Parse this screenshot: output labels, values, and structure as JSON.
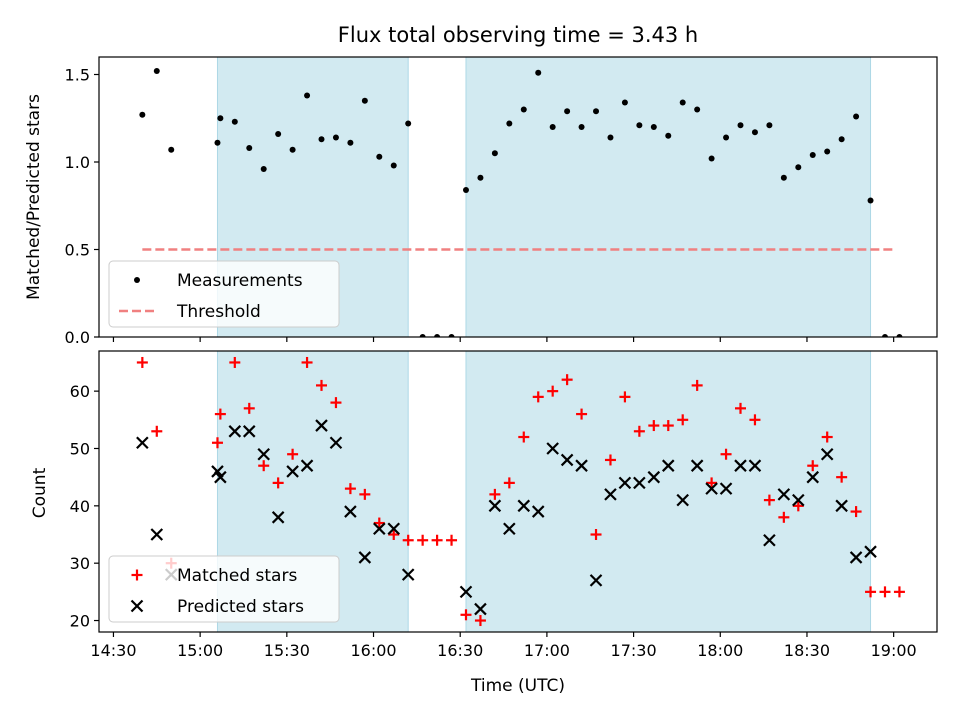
{
  "title": "Flux total observing time = 3.43 h",
  "chart_data": [
    {
      "type": "scatter",
      "panel": "top",
      "ylabel": "Matched/Predicted stars",
      "ylim": [
        0,
        1.6
      ],
      "yticks": [
        0.0,
        0.5,
        1.0,
        1.5
      ],
      "ytick_labels": [
        "0.0",
        "0.5",
        "1.0",
        "1.5"
      ],
      "series": [
        {
          "name": "Measurements",
          "color": "#000000",
          "marker": "dot",
          "points": [
            [
              "14:40",
              1.27
            ],
            [
              "14:45",
              1.52
            ],
            [
              "14:50",
              1.07
            ],
            [
              "15:06",
              1.11
            ],
            [
              "15:07",
              1.25
            ],
            [
              "15:12",
              1.23
            ],
            [
              "15:17",
              1.08
            ],
            [
              "15:22",
              0.96
            ],
            [
              "15:27",
              1.16
            ],
            [
              "15:32",
              1.07
            ],
            [
              "15:37",
              1.38
            ],
            [
              "15:42",
              1.13
            ],
            [
              "15:47",
              1.14
            ],
            [
              "15:52",
              1.11
            ],
            [
              "15:57",
              1.35
            ],
            [
              "16:02",
              1.03
            ],
            [
              "16:07",
              0.98
            ],
            [
              "16:12",
              1.22
            ],
            [
              "16:17",
              0.0
            ],
            [
              "16:22",
              0.0
            ],
            [
              "16:27",
              0.0
            ],
            [
              "16:32",
              0.84
            ],
            [
              "16:37",
              0.91
            ],
            [
              "16:42",
              1.05
            ],
            [
              "16:47",
              1.22
            ],
            [
              "16:52",
              1.3
            ],
            [
              "16:57",
              1.51
            ],
            [
              "17:02",
              1.2
            ],
            [
              "17:07",
              1.29
            ],
            [
              "17:12",
              1.2
            ],
            [
              "17:17",
              1.29
            ],
            [
              "17:22",
              1.14
            ],
            [
              "17:27",
              1.34
            ],
            [
              "17:32",
              1.21
            ],
            [
              "17:37",
              1.2
            ],
            [
              "17:42",
              1.15
            ],
            [
              "17:47",
              1.34
            ],
            [
              "17:52",
              1.3
            ],
            [
              "17:57",
              1.02
            ],
            [
              "18:02",
              1.14
            ],
            [
              "18:07",
              1.21
            ],
            [
              "18:12",
              1.17
            ],
            [
              "18:17",
              1.21
            ],
            [
              "18:22",
              0.91
            ],
            [
              "18:27",
              0.97
            ],
            [
              "18:32",
              1.04
            ],
            [
              "18:37",
              1.06
            ],
            [
              "18:42",
              1.13
            ],
            [
              "18:47",
              1.26
            ],
            [
              "18:52",
              0.78
            ],
            [
              "18:57",
              0.0
            ],
            [
              "19:02",
              0.0
            ]
          ]
        },
        {
          "name": "Threshold",
          "color": "#f08080",
          "style": "dashed",
          "points": [
            [
              "14:40",
              0.5
            ],
            [
              "19:00",
              0.5
            ]
          ]
        }
      ],
      "shaded_intervals": [
        [
          "15:06",
          "16:12"
        ],
        [
          "16:32",
          "18:52"
        ]
      ],
      "shade_color": "#add8e6",
      "legend": {
        "placement": "lower-left",
        "labels": [
          "Measurements",
          "Threshold"
        ]
      }
    },
    {
      "type": "scatter",
      "panel": "bottom",
      "xlabel": "Time (UTC)",
      "ylabel": "Count",
      "ylim": [
        18,
        67
      ],
      "yticks": [
        20,
        30,
        40,
        50,
        60
      ],
      "ytick_labels": [
        "20",
        "30",
        "40",
        "50",
        "60"
      ],
      "xlim": [
        "14:25",
        "19:15"
      ],
      "xticks": [
        "14:30",
        "15:00",
        "15:30",
        "16:00",
        "16:30",
        "17:00",
        "17:30",
        "18:00",
        "18:30",
        "19:00"
      ],
      "series": [
        {
          "name": "Matched stars",
          "color": "#ff0000",
          "marker": "plus",
          "points": [
            [
              "14:40",
              65
            ],
            [
              "14:45",
              53
            ],
            [
              "14:50",
              30
            ],
            [
              "15:06",
              51
            ],
            [
              "15:07",
              56
            ],
            [
              "15:12",
              65
            ],
            [
              "15:17",
              57
            ],
            [
              "15:22",
              47
            ],
            [
              "15:27",
              44
            ],
            [
              "15:32",
              49
            ],
            [
              "15:37",
              65
            ],
            [
              "15:42",
              61
            ],
            [
              "15:47",
              58
            ],
            [
              "15:52",
              43
            ],
            [
              "15:57",
              42
            ],
            [
              "16:02",
              37
            ],
            [
              "16:07",
              35
            ],
            [
              "16:12",
              34
            ],
            [
              "16:17",
              34
            ],
            [
              "16:22",
              34
            ],
            [
              "16:27",
              34
            ],
            [
              "16:32",
              21
            ],
            [
              "16:37",
              20
            ],
            [
              "16:42",
              42
            ],
            [
              "16:47",
              44
            ],
            [
              "16:52",
              52
            ],
            [
              "16:57",
              59
            ],
            [
              "17:02",
              60
            ],
            [
              "17:07",
              62
            ],
            [
              "17:12",
              56
            ],
            [
              "17:17",
              35
            ],
            [
              "17:22",
              48
            ],
            [
              "17:27",
              59
            ],
            [
              "17:32",
              53
            ],
            [
              "17:37",
              54
            ],
            [
              "17:42",
              54
            ],
            [
              "17:47",
              55
            ],
            [
              "17:52",
              61
            ],
            [
              "17:57",
              44
            ],
            [
              "18:02",
              49
            ],
            [
              "18:07",
              57
            ],
            [
              "18:12",
              55
            ],
            [
              "18:17",
              41
            ],
            [
              "18:22",
              38
            ],
            [
              "18:27",
              40
            ],
            [
              "18:32",
              47
            ],
            [
              "18:37",
              52
            ],
            [
              "18:42",
              45
            ],
            [
              "18:47",
              39
            ],
            [
              "18:52",
              25
            ],
            [
              "18:57",
              25
            ],
            [
              "19:02",
              25
            ]
          ]
        },
        {
          "name": "Predicted stars",
          "color": "#000000",
          "marker": "x",
          "points": [
            [
              "14:40",
              51
            ],
            [
              "14:45",
              35
            ],
            [
              "14:50",
              28
            ],
            [
              "15:06",
              46
            ],
            [
              "15:07",
              45
            ],
            [
              "15:12",
              53
            ],
            [
              "15:17",
              53
            ],
            [
              "15:22",
              49
            ],
            [
              "15:27",
              38
            ],
            [
              "15:32",
              46
            ],
            [
              "15:37",
              47
            ],
            [
              "15:42",
              54
            ],
            [
              "15:47",
              51
            ],
            [
              "15:52",
              39
            ],
            [
              "15:57",
              31
            ],
            [
              "16:02",
              36
            ],
            [
              "16:07",
              36
            ],
            [
              "16:12",
              28
            ],
            [
              "16:32",
              25
            ],
            [
              "16:37",
              22
            ],
            [
              "16:42",
              40
            ],
            [
              "16:47",
              36
            ],
            [
              "16:52",
              40
            ],
            [
              "16:57",
              39
            ],
            [
              "17:02",
              50
            ],
            [
              "17:07",
              48
            ],
            [
              "17:12",
              47
            ],
            [
              "17:17",
              27
            ],
            [
              "17:22",
              42
            ],
            [
              "17:27",
              44
            ],
            [
              "17:32",
              44
            ],
            [
              "17:37",
              45
            ],
            [
              "17:42",
              47
            ],
            [
              "17:47",
              41
            ],
            [
              "17:52",
              47
            ],
            [
              "17:57",
              43
            ],
            [
              "18:02",
              43
            ],
            [
              "18:07",
              47
            ],
            [
              "18:12",
              47
            ],
            [
              "18:17",
              34
            ],
            [
              "18:22",
              42
            ],
            [
              "18:27",
              41
            ],
            [
              "18:32",
              45
            ],
            [
              "18:37",
              49
            ],
            [
              "18:42",
              40
            ],
            [
              "18:47",
              31
            ],
            [
              "18:52",
              32
            ]
          ]
        }
      ],
      "shaded_intervals": [
        [
          "15:06",
          "16:12"
        ],
        [
          "16:32",
          "18:52"
        ]
      ],
      "shade_color": "#add8e6",
      "legend": {
        "placement": "lower-left",
        "labels": [
          "Matched stars",
          "Predicted stars"
        ]
      }
    }
  ]
}
